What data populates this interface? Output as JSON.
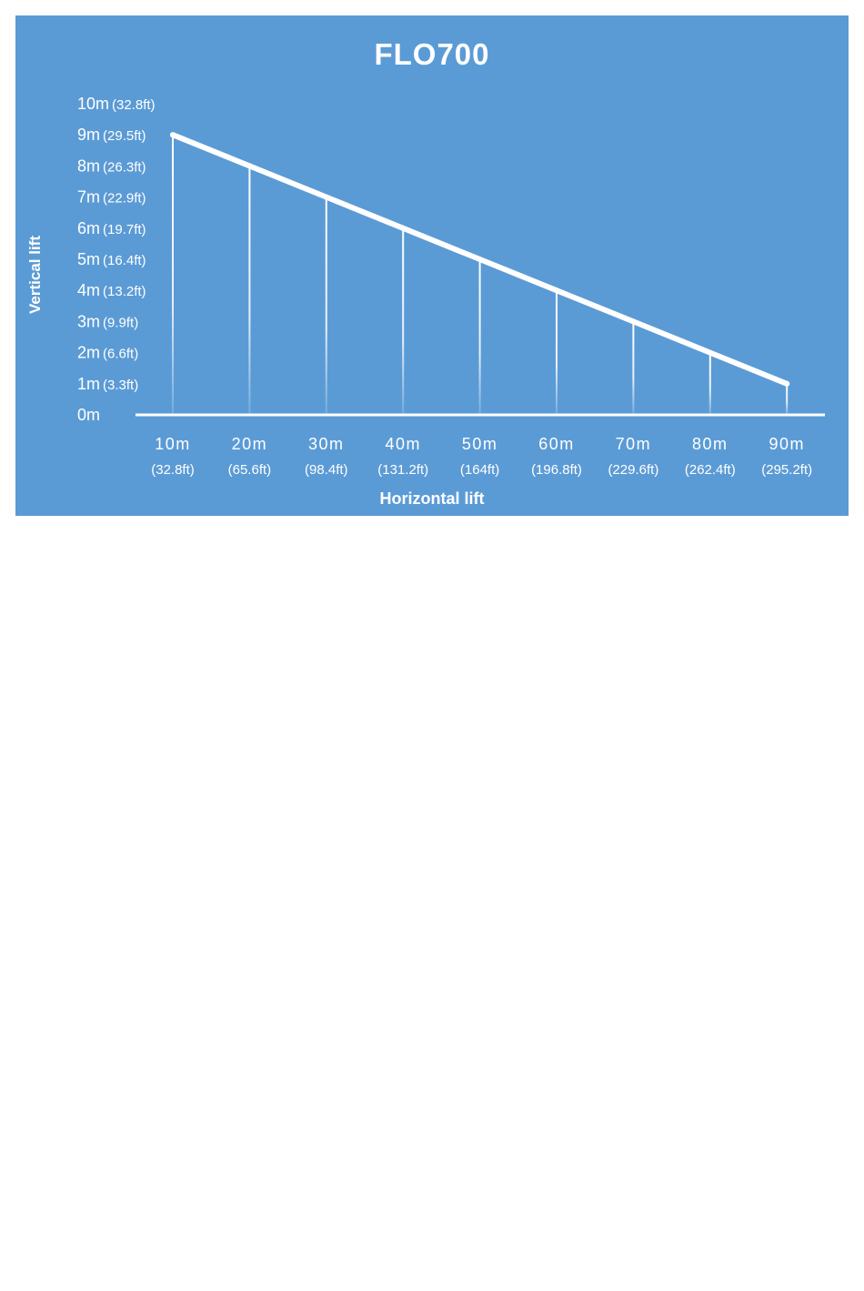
{
  "colors": {
    "background": "#5b9bd5",
    "foreground": "#ffffff",
    "page": "#ffffff"
  },
  "chart_data": {
    "type": "line",
    "title": "FLO700",
    "xlabel": "Horizontal lift",
    "ylabel": "Vertical lift",
    "x": [
      10,
      20,
      30,
      40,
      50,
      60,
      70,
      80,
      90
    ],
    "series": [
      {
        "values": [
          9,
          8,
          7,
          6,
          5,
          4,
          3,
          2,
          1
        ]
      }
    ],
    "x_tick_labels": [
      {
        "metric": "10m",
        "imperial": "(32.8ft)"
      },
      {
        "metric": "20m",
        "imperial": "(65.6ft)"
      },
      {
        "metric": "30m",
        "imperial": "(98.4ft)"
      },
      {
        "metric": "40m",
        "imperial": "(131.2ft)"
      },
      {
        "metric": "50m",
        "imperial": "(164ft)"
      },
      {
        "metric": "60m",
        "imperial": "(196.8ft)"
      },
      {
        "metric": "70m",
        "imperial": "(229.6ft)"
      },
      {
        "metric": "80m",
        "imperial": "(262.4ft)"
      },
      {
        "metric": "90m",
        "imperial": "(295.2ft)"
      }
    ],
    "y_ticks": [
      0,
      1,
      2,
      3,
      4,
      5,
      6,
      7,
      8,
      9,
      10
    ],
    "y_tick_labels": [
      {
        "metric": "0m",
        "imperial": ""
      },
      {
        "metric": "1m",
        "imperial": "(3.3ft)"
      },
      {
        "metric": "2m",
        "imperial": "(6.6ft)"
      },
      {
        "metric": "3m",
        "imperial": "(9.9ft)"
      },
      {
        "metric": "4m",
        "imperial": "(13.2ft)"
      },
      {
        "metric": "5m",
        "imperial": "(16.4ft)"
      },
      {
        "metric": "6m",
        "imperial": "(19.7ft)"
      },
      {
        "metric": "7m",
        "imperial": "(22.9ft)"
      },
      {
        "metric": "8m",
        "imperial": "(26.3ft)"
      },
      {
        "metric": "9m",
        "imperial": "(29.5ft)"
      },
      {
        "metric": "10m",
        "imperial": "(32.8ft)"
      }
    ],
    "ylim": [
      0,
      10
    ],
    "xlim": [
      10,
      90
    ],
    "grid": false,
    "drop_lines": true
  }
}
